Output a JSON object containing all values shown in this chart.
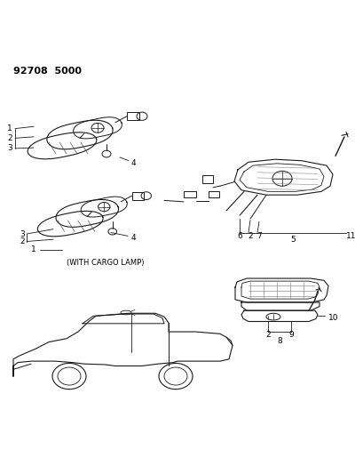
{
  "title": "92708  5000",
  "bg_color": "#ffffff",
  "line_color": "#1a1a1a",
  "fig_width": 4.1,
  "fig_height": 5.33,
  "dpi": 100,
  "label_cargo": "(WITH CARGO LAMP)"
}
